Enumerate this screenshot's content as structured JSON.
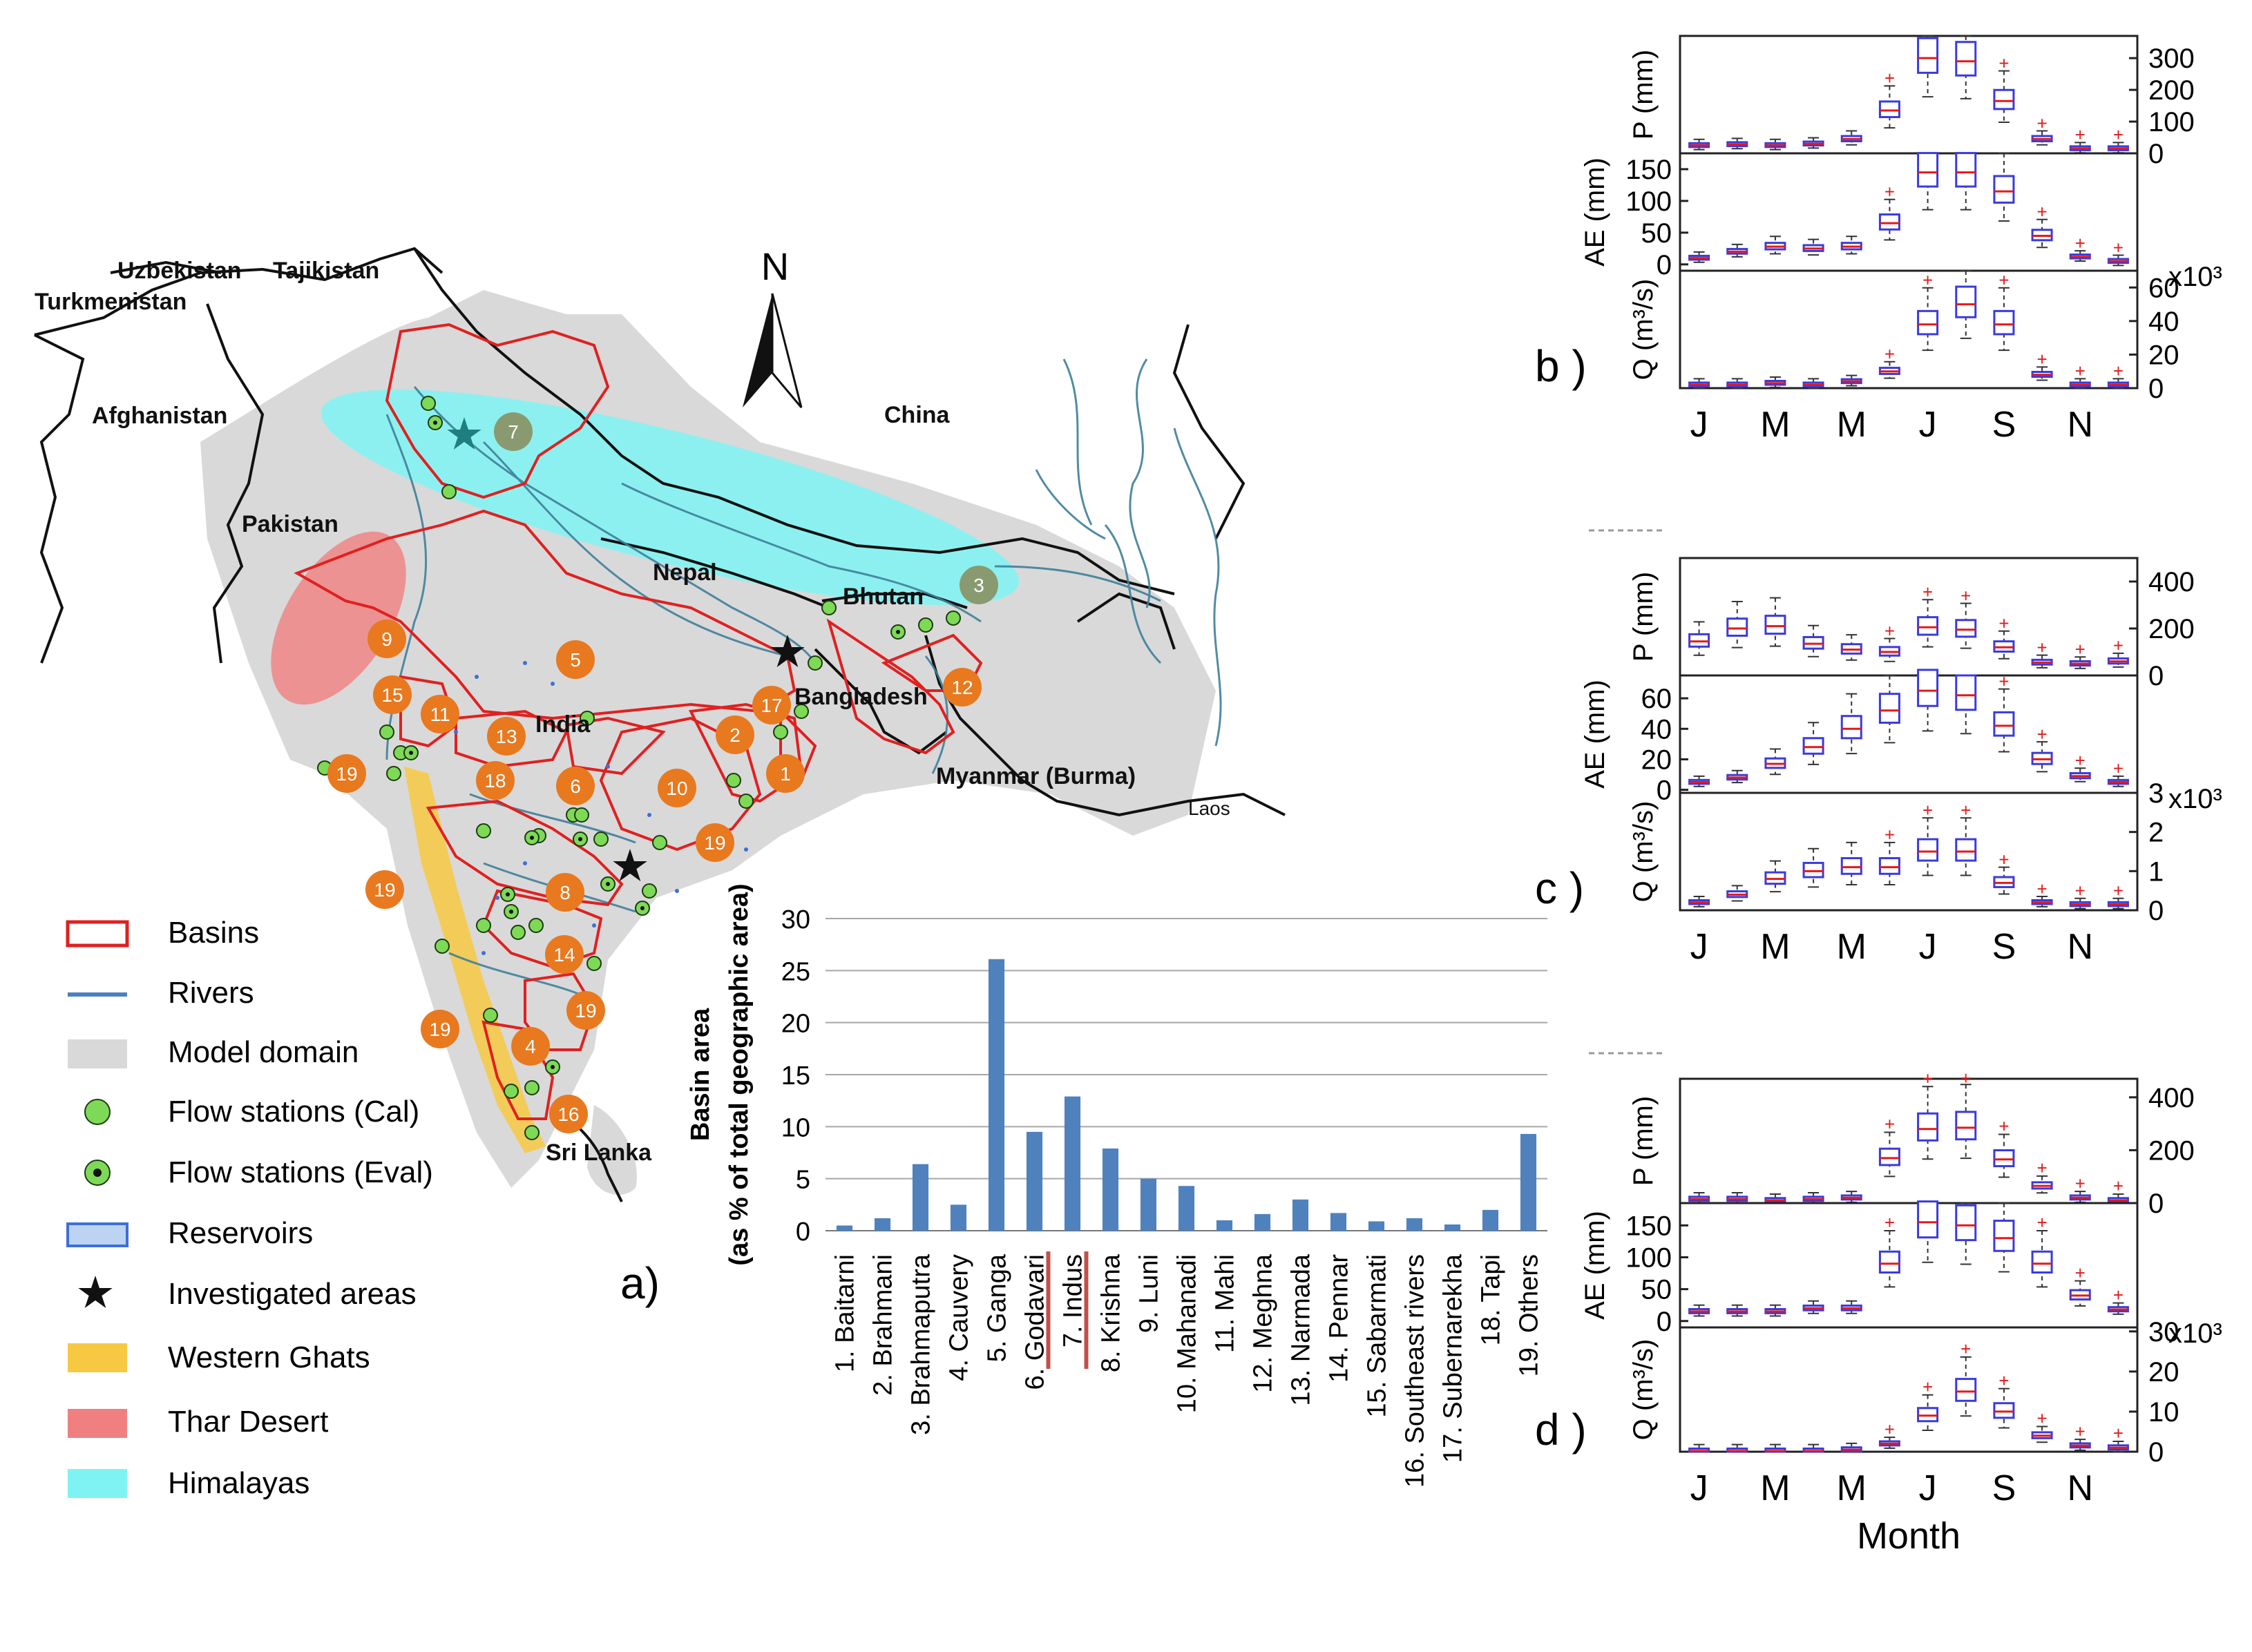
{
  "map": {
    "panel_label": "a)",
    "north_label": "N",
    "countries": [
      "Uzbekistan",
      "Tajikistan",
      "Turkmenistan",
      "Afghanistan",
      "Pakistan",
      "China",
      "Nepal",
      "Bhutan",
      "India",
      "Bangladesh",
      "Myanmar (Burma)",
      "Sri Lanka",
      "Laos"
    ],
    "basin_markers": [
      "7",
      "3",
      "9",
      "5",
      "15",
      "11",
      "13",
      "17",
      "2",
      "12",
      "19",
      "18",
      "6",
      "10",
      "1",
      "19",
      "19",
      "8",
      "14",
      "19",
      "19",
      "4",
      "16"
    ]
  },
  "legend": {
    "items": [
      {
        "label": "Basins",
        "icon": "basin-outline-icon"
      },
      {
        "label": "Rivers",
        "icon": "river-line-icon"
      },
      {
        "label": "Model domain",
        "icon": "model-domain-swatch-icon"
      },
      {
        "label": "Flow stations (Cal)",
        "icon": "green-dot-icon"
      },
      {
        "label": "Flow stations (Eval)",
        "icon": "green-dot-ringed-icon"
      },
      {
        "label": "Reservoirs",
        "icon": "reservoir-hatch-icon"
      },
      {
        "label": "Investigated areas",
        "icon": "star-icon"
      },
      {
        "label": "Western Ghats",
        "icon": "yellow-swatch-icon"
      },
      {
        "label": "Thar Desert",
        "icon": "red-swatch-icon"
      },
      {
        "label": "Himalayas",
        "icon": "cyan-swatch-icon"
      }
    ]
  },
  "colors": {
    "basin": "#e02020",
    "river": "#4a7fc0",
    "domain": "#d9d9d9",
    "station": "#7ed957",
    "marker": "#e8791f",
    "western_ghats": "#f7c842",
    "thar": "#f08080",
    "himalaya": "#7ff3f3",
    "bar": "#4f81bd",
    "box": "#3a3adf",
    "median": "#e21a1a",
    "outlier": "#e21a1a"
  },
  "chart_data": [
    {
      "type": "bar",
      "ylabel_line1": "Basin area",
      "ylabel_line2": "(as % of total geographic area)",
      "ylim": [
        0,
        30
      ],
      "yticks": [
        "0",
        "5",
        "10",
        "15",
        "20",
        "25",
        "30"
      ],
      "grid": true,
      "categories": [
        "1. Baitarni",
        "2. Brahmani",
        "3. Brahmaputra",
        "4. Cauvery",
        "5. Ganga",
        "6. Godavari",
        "7. Indus",
        "8. Krishna",
        "9. Luni",
        "10. Mahanadi",
        "11. Mahi",
        "12. Meghna",
        "13. Narmada",
        "14. Pennar",
        "15. Sabarmati",
        "16. Southeast rivers",
        "17. Subernarekha",
        "18. Tapi",
        "19. Others"
      ],
      "values": [
        0.5,
        1.2,
        6.4,
        2.5,
        26.1,
        9.5,
        12.9,
        7.9,
        5.0,
        4.3,
        1.0,
        1.6,
        3.0,
        1.7,
        0.9,
        1.2,
        0.6,
        2.0,
        9.3
      ],
      "underlined": [
        "6. Godavari",
        "7. Indus"
      ]
    },
    {
      "type": "box",
      "panel_label": "b )",
      "xticks": [
        "J",
        "M",
        "M",
        "J",
        "S",
        "N"
      ],
      "xlabel": "",
      "rows": [
        {
          "ylabel": "P (mm)",
          "ylim": [
            0,
            370
          ],
          "yticks": [
            0,
            100,
            200,
            300
          ],
          "tick_side": "right",
          "multiplier": "",
          "medians": [
            25,
            28,
            25,
            30,
            45,
            135,
            300,
            290,
            165,
            45,
            15,
            15
          ]
        },
        {
          "ylabel": "AE (mm)",
          "ylim": [
            -10,
            175
          ],
          "yticks": [
            0,
            50,
            100,
            150
          ],
          "tick_side": "left",
          "multiplier": "x10³",
          "medians": [
            10,
            20,
            28,
            25,
            28,
            65,
            145,
            145,
            115,
            45,
            12,
            5
          ]
        },
        {
          "ylabel": "Q (m³/s)",
          "ylim": [
            0,
            70
          ],
          "yticks": [
            0,
            20,
            40,
            60
          ],
          "tick_side": "right",
          "multiplier": "",
          "medians": [
            2,
            2,
            3,
            2,
            4,
            10,
            38,
            50,
            38,
            8,
            2,
            2
          ]
        }
      ]
    },
    {
      "type": "box",
      "panel_label": "c )",
      "xticks": [
        "J",
        "M",
        "M",
        "J",
        "S",
        "N"
      ],
      "xlabel": "",
      "rows": [
        {
          "ylabel": "P (mm)",
          "ylim": [
            0,
            500
          ],
          "yticks": [
            0,
            200,
            400
          ],
          "tick_side": "right",
          "multiplier": "",
          "medians": [
            145,
            200,
            210,
            135,
            110,
            100,
            205,
            195,
            120,
            55,
            50,
            60
          ]
        },
        {
          "ylabel": "AE (mm)",
          "ylim": [
            -2,
            75
          ],
          "yticks": [
            0,
            20,
            40,
            60
          ],
          "tick_side": "left",
          "multiplier": "x10³",
          "medians": [
            5,
            8,
            17,
            28,
            40,
            52,
            65,
            62,
            42,
            20,
            9,
            5
          ]
        },
        {
          "ylabel": "Q (m³/s)",
          "ylim": [
            0,
            3
          ],
          "yticks": [
            0,
            1,
            2,
            3
          ],
          "tick_side": "right",
          "multiplier": "",
          "medians": [
            0.2,
            0.4,
            0.8,
            1.0,
            1.1,
            1.1,
            1.5,
            1.5,
            0.7,
            0.2,
            0.15,
            0.15
          ]
        }
      ]
    },
    {
      "type": "box",
      "panel_label": "d )",
      "xticks": [
        "J",
        "M",
        "M",
        "J",
        "S",
        "N"
      ],
      "xlabel": "Month",
      "rows": [
        {
          "ylabel": "P (mm)",
          "ylim": [
            0,
            470
          ],
          "yticks": [
            0,
            200,
            400
          ],
          "tick_side": "right",
          "multiplier": "",
          "medians": [
            15,
            15,
            10,
            15,
            20,
            170,
            280,
            285,
            165,
            65,
            20,
            10
          ]
        },
        {
          "ylabel": "AE (mm)",
          "ylim": [
            -10,
            185
          ],
          "yticks": [
            0,
            50,
            100,
            150
          ],
          "tick_side": "left",
          "multiplier": "x10³",
          "medians": [
            15,
            15,
            15,
            20,
            20,
            90,
            155,
            150,
            130,
            90,
            40,
            18
          ]
        },
        {
          "ylabel": "Q (m³/s)",
          "ylim": [
            0,
            31
          ],
          "yticks": [
            0,
            10,
            20,
            30
          ],
          "tick_side": "right",
          "multiplier": "",
          "medians": [
            0.2,
            0.2,
            0.2,
            0.2,
            0.5,
            2,
            9,
            15,
            10,
            4,
            1.5,
            1
          ]
        }
      ]
    }
  ]
}
